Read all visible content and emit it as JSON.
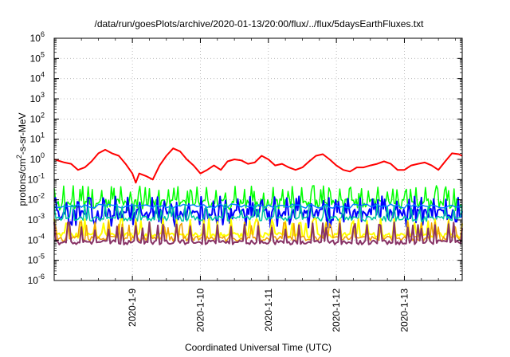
{
  "chart_data": {
    "type": "line",
    "title": "/data/run/goesPlots/archive/2020-01-13/20:00/flux/../flux/5daysEarthFluxes.txt",
    "xlabel": "Coordinated Universal Time (UTC)",
    "ylabel_parts": [
      "protons/cm",
      "2",
      "-s-sr-MeV"
    ],
    "yscale": "log",
    "ylim_exp": [
      -6,
      6
    ],
    "y_ticks": [
      {
        "base": "10",
        "exp": "-6",
        "e": -6
      },
      {
        "base": "10",
        "exp": "-5",
        "e": -5
      },
      {
        "base": "10",
        "exp": "-4",
        "e": -4
      },
      {
        "base": "10",
        "exp": "-3",
        "e": -3
      },
      {
        "base": "10",
        "exp": "-2",
        "e": -2
      },
      {
        "base": "10",
        "exp": "-1",
        "e": -1
      },
      {
        "base": "10",
        "exp": "0",
        "e": 0
      },
      {
        "base": "10",
        "exp": "1",
        "e": 1
      },
      {
        "base": "10",
        "exp": "2",
        "e": 2
      },
      {
        "base": "10",
        "exp": "3",
        "e": 3
      },
      {
        "base": "10",
        "exp": "4",
        "e": 4
      },
      {
        "base": "10",
        "exp": "5",
        "e": 5
      },
      {
        "base": "10",
        "exp": "6",
        "e": 6
      }
    ],
    "xlim_days": [
      -0.15,
      5.85
    ],
    "x_ticks": [
      {
        "label": "2020-1-9",
        "d": 1
      },
      {
        "label": "2020-1-10",
        "d": 2
      },
      {
        "label": "2020-1-11",
        "d": 3
      },
      {
        "label": "2020-1-12",
        "d": 4
      },
      {
        "label": "2020-1-13",
        "d": 5
      }
    ],
    "grid": true,
    "series": [
      {
        "color": "#ff0000",
        "width": 2,
        "spiky": false,
        "points": [
          [
            -0.15,
            1.0
          ],
          [
            0.0,
            0.7
          ],
          [
            0.1,
            0.6
          ],
          [
            0.2,
            0.3
          ],
          [
            0.3,
            0.4
          ],
          [
            0.4,
            0.8
          ],
          [
            0.5,
            2.0
          ],
          [
            0.6,
            3.0
          ],
          [
            0.7,
            2.0
          ],
          [
            0.8,
            1.5
          ],
          [
            0.9,
            0.6
          ],
          [
            1.0,
            0.2
          ],
          [
            1.05,
            0.07
          ],
          [
            1.1,
            0.2
          ],
          [
            1.2,
            0.15
          ],
          [
            1.3,
            0.1
          ],
          [
            1.4,
            0.5
          ],
          [
            1.5,
            1.5
          ],
          [
            1.6,
            3.5
          ],
          [
            1.7,
            2.5
          ],
          [
            1.8,
            1.0
          ],
          [
            1.9,
            0.5
          ],
          [
            2.0,
            0.2
          ],
          [
            2.1,
            0.3
          ],
          [
            2.2,
            0.5
          ],
          [
            2.3,
            0.3
          ],
          [
            2.4,
            0.8
          ],
          [
            2.5,
            1.0
          ],
          [
            2.6,
            0.9
          ],
          [
            2.7,
            0.6
          ],
          [
            2.8,
            0.7
          ],
          [
            2.9,
            1.5
          ],
          [
            3.0,
            1.0
          ],
          [
            3.1,
            0.5
          ],
          [
            3.2,
            0.6
          ],
          [
            3.3,
            0.4
          ],
          [
            3.4,
            0.3
          ],
          [
            3.5,
            0.4
          ],
          [
            3.6,
            0.8
          ],
          [
            3.7,
            1.5
          ],
          [
            3.8,
            1.8
          ],
          [
            3.9,
            1.0
          ],
          [
            4.0,
            0.5
          ],
          [
            4.1,
            0.3
          ],
          [
            4.2,
            0.25
          ],
          [
            4.3,
            0.4
          ],
          [
            4.4,
            0.4
          ],
          [
            4.5,
            0.5
          ],
          [
            4.6,
            0.6
          ],
          [
            4.7,
            0.8
          ],
          [
            4.8,
            0.6
          ],
          [
            4.9,
            0.3
          ],
          [
            5.0,
            0.3
          ],
          [
            5.1,
            0.5
          ],
          [
            5.2,
            0.6
          ],
          [
            5.3,
            0.7
          ],
          [
            5.4,
            0.5
          ],
          [
            5.5,
            0.3
          ],
          [
            5.6,
            0.8
          ],
          [
            5.7,
            2.0
          ],
          [
            5.8,
            1.8
          ],
          [
            5.85,
            1.5
          ]
        ]
      },
      {
        "color": "#00ff00",
        "width": 1.5,
        "spiky": true,
        "base": 0.007,
        "var": 0.6,
        "peak_min": 0.02,
        "peak_max": 0.05,
        "spike_every": 7,
        "step": 0.02,
        "seed": 3
      },
      {
        "color": "#0000ff",
        "width": 2,
        "spiky": true,
        "base": 0.002,
        "var": 0.8,
        "peak_min": 0.006,
        "peak_max": 0.015,
        "spike_every": 9,
        "step": 0.02,
        "seed": 11
      },
      {
        "color": "#0080ff",
        "width": 1.5,
        "spiky": false,
        "level": 0.005,
        "var": 0.25,
        "step": 0.05,
        "seed": 21
      },
      {
        "color": "#00c8a0",
        "width": 1.5,
        "spiky": true,
        "base": 0.0012,
        "var": 0.3,
        "peak_min": 0.003,
        "peak_max": 0.006,
        "spike_every": 10,
        "step": 0.025,
        "seed": 17
      },
      {
        "color": "#ffff00",
        "width": 2,
        "spiky": true,
        "base": 0.00018,
        "var": 0.3,
        "peak_min": 0.0006,
        "peak_max": 0.0012,
        "spike_every": 8,
        "step": 0.025,
        "seed": 29
      },
      {
        "color": "#f0a000",
        "width": 1.5,
        "spiky": true,
        "base": 0.00012,
        "var": 0.3,
        "peak_min": 0.0004,
        "peak_max": 0.0009,
        "spike_every": 8,
        "step": 0.025,
        "seed": 37
      },
      {
        "color": "#883366",
        "width": 2,
        "spiky": true,
        "base": 8e-05,
        "var": 0.25,
        "peak_min": 0.0003,
        "peak_max": 0.0008,
        "spike_every": 8,
        "step": 0.025,
        "seed": 41
      }
    ]
  }
}
